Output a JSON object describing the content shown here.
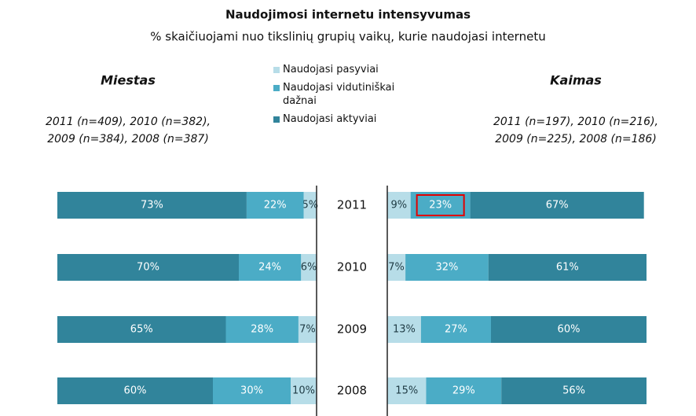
{
  "chart_data": {
    "type": "bar",
    "title": "Naudojimosi internetu intensyvumas",
    "subtitle": "% skaičiuojami nuo tikslinių grupių vaikų, kurie naudojasi internetu",
    "categories": [
      "2011",
      "2010",
      "2009",
      "2008"
    ],
    "xlim": [
      0,
      100
    ],
    "series": [
      {
        "name": "Naudojasi pasyviai",
        "color": "#b7dde8",
        "label_color": "#1f3b44"
      },
      {
        "name": "Naudojasi vidutiniškai dažnai",
        "color": "#4bacc6",
        "label_color": "#ffffff"
      },
      {
        "name": "Naudojasi aktyviai",
        "color": "#31849b",
        "label_color": "#ffffff"
      }
    ],
    "panels": [
      {
        "title": "Miestas",
        "direction": "left",
        "note": [
          "2011 (n=409), 2010 (n=382),",
          "2009 (n=384),  2008 (n=387)"
        ],
        "series": [
          {
            "values": [
              5,
              6,
              7,
              10
            ],
            "value_labels": [
              "5%",
              "6%",
              "7%",
              "10%"
            ]
          },
          {
            "values": [
              22,
              24,
              28,
              30
            ],
            "value_labels": [
              "22%",
              "24%",
              "28%",
              "30%"
            ]
          },
          {
            "values": [
              73,
              70,
              65,
              60
            ],
            "value_labels": [
              "73%",
              "70%",
              "65%",
              "60%"
            ]
          }
        ]
      },
      {
        "title": "Kaimas",
        "direction": "right",
        "note": [
          "2011 (n=197), 2010 (n=216),",
          "2009 (n=225), 2008 (n=186)"
        ],
        "highlight": {
          "series": 1,
          "index": 0,
          "color": "#e00000"
        },
        "series": [
          {
            "values": [
              9,
              7,
              13,
              15
            ],
            "value_labels": [
              "9%",
              "7%",
              "13%",
              "15%"
            ]
          },
          {
            "values": [
              23,
              32,
              27,
              29
            ],
            "value_labels": [
              "23%",
              "32%",
              "27%",
              "29%"
            ]
          },
          {
            "values": [
              67,
              61,
              60,
              56
            ],
            "value_labels": [
              "67%",
              "61%",
              "60%",
              "56%"
            ]
          }
        ]
      }
    ]
  }
}
